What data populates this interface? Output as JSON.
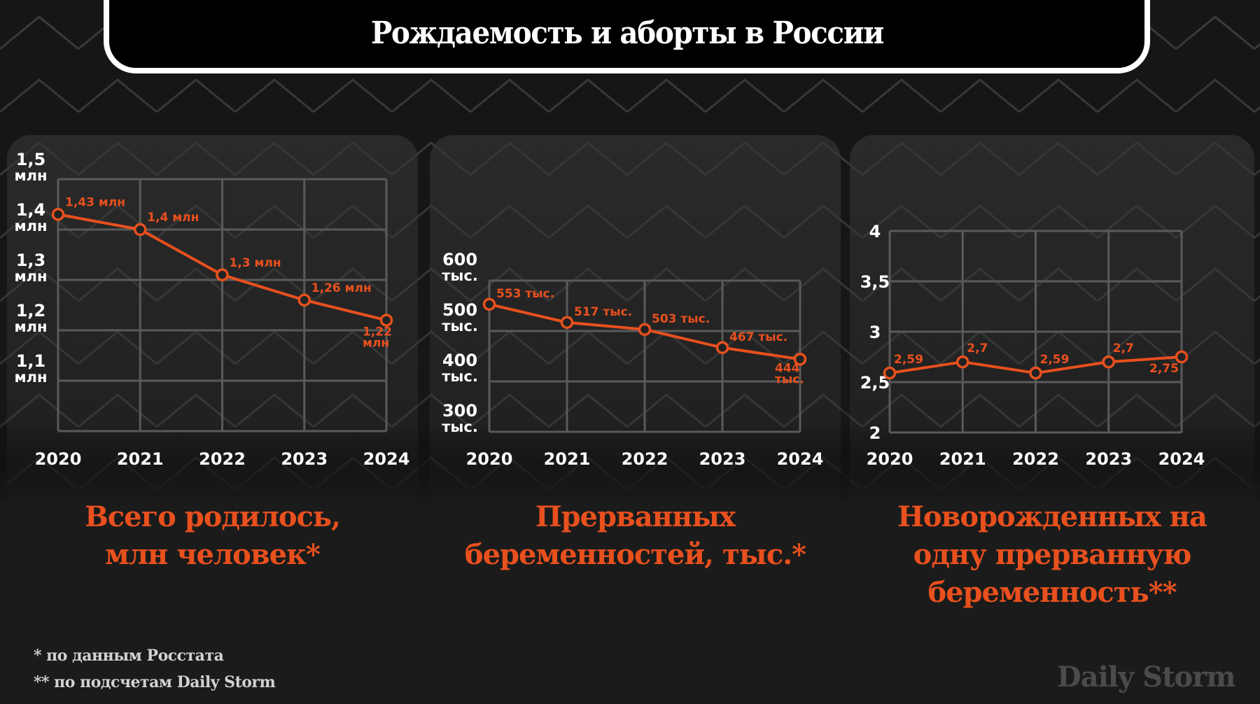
{
  "header": {
    "title": "Рождаемость и аборты в России"
  },
  "colors": {
    "accent": "#e8501e",
    "grid": "#5a5a5a",
    "axis_text": "#ffffff",
    "background": "#161616",
    "panel": "#262626",
    "footnote": "#d2d2d2",
    "logo": "#4b4b4b"
  },
  "captions": [
    {
      "lines": [
        "Всего родилось,",
        "млн человек*"
      ]
    },
    {
      "lines": [
        "Прерванных",
        "беременностей, тыс.*"
      ]
    },
    {
      "lines": [
        "Новорожденных на",
        "одну прерванную",
        "беременность**"
      ]
    }
  ],
  "footnotes": [
    "* по данным Росстата",
    "** по подсчетам Daily Storm"
  ],
  "logo": "Daily Storm",
  "chart_data": [
    {
      "type": "line",
      "title": "Всего родилось, млн человек*",
      "x": [
        "2020",
        "2021",
        "2022",
        "2023",
        "2024"
      ],
      "values": [
        1.43,
        1.4,
        1.31,
        1.26,
        1.22
      ],
      "data_labels": [
        [
          "1,43 млн"
        ],
        [
          "1,4 млн"
        ],
        [
          "1,3 млн"
        ],
        [
          "1,26 млн"
        ],
        [
          "1,22",
          "млн"
        ]
      ],
      "ylim": [
        1.0,
        1.5
      ],
      "y_ticks": [
        1.5,
        1.4,
        1.3,
        1.2,
        1.1
      ],
      "y_tick_labels": [
        [
          "1,5",
          "млн"
        ],
        [
          "1,4",
          "млн"
        ],
        [
          "1,3",
          "млн"
        ],
        [
          "1,2",
          "млн"
        ],
        [
          "1,1",
          "млн"
        ]
      ],
      "grid": true,
      "xlabel": "",
      "ylabel": ""
    },
    {
      "type": "line",
      "title": "Прерванных беременностей, тыс.*",
      "x": [
        "2020",
        "2021",
        "2022",
        "2023",
        "2024"
      ],
      "values": [
        553,
        517,
        503,
        467,
        444
      ],
      "data_labels": [
        [
          "553 тыс."
        ],
        [
          "517 тыс."
        ],
        [
          "503 тыс."
        ],
        [
          "467 тыс."
        ],
        [
          "444",
          "тыс."
        ]
      ],
      "ylim": [
        300,
        600
      ],
      "y_ticks": [
        600,
        500,
        400,
        300
      ],
      "y_tick_labels": [
        [
          "600",
          "тыс."
        ],
        [
          "500",
          "тыс."
        ],
        [
          "400",
          "тыс."
        ],
        [
          "300",
          "тыс."
        ]
      ],
      "grid": true,
      "xlabel": "",
      "ylabel": ""
    },
    {
      "type": "line",
      "title": "Новорожденных на одну прерванную беременность**",
      "x": [
        "2020",
        "2021",
        "2022",
        "2023",
        "2024"
      ],
      "values": [
        2.59,
        2.7,
        2.59,
        2.7,
        2.75
      ],
      "data_labels": [
        [
          "2,59"
        ],
        [
          "2,7"
        ],
        [
          "2,59"
        ],
        [
          "2,7"
        ],
        [
          "2,75"
        ]
      ],
      "ylim": [
        2,
        4
      ],
      "y_ticks": [
        4,
        3.5,
        3,
        2.5,
        2
      ],
      "y_tick_labels": [
        [
          "4"
        ],
        [
          "3,5"
        ],
        [
          "3"
        ],
        [
          "2,5"
        ],
        [
          "2"
        ]
      ],
      "grid": true,
      "xlabel": "",
      "ylabel": ""
    }
  ]
}
